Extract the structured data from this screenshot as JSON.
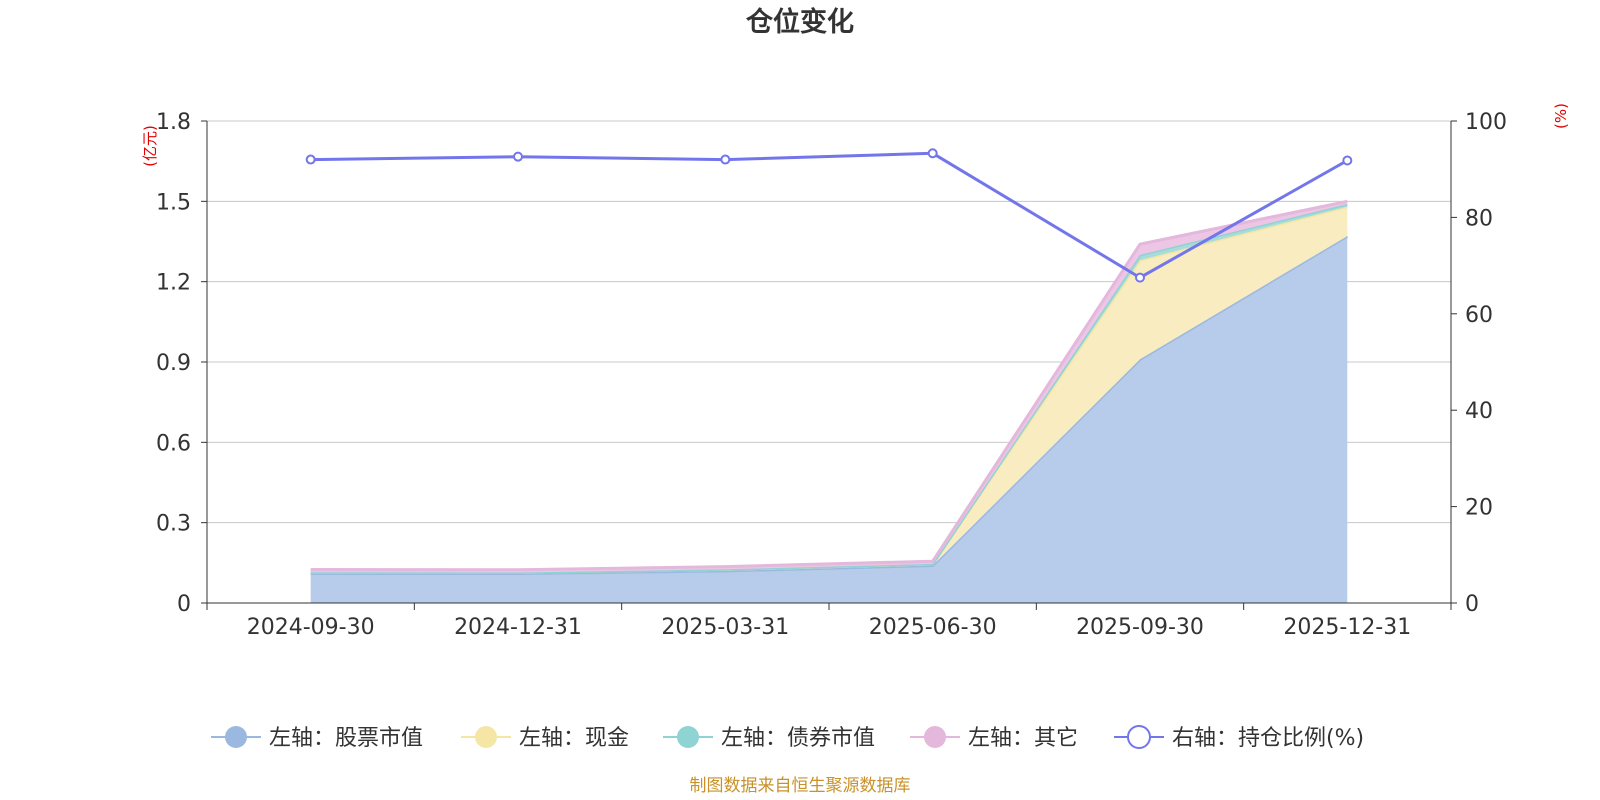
{
  "chart_data": {
    "type": "area",
    "title": "仓位变化",
    "x": [
      "2024-09-30",
      "2024-12-31",
      "2025-03-31",
      "2025-06-30",
      "2025-09-30",
      "2025-12-31"
    ],
    "left_axis": {
      "unit": "(亿元)",
      "range": [
        0,
        1.8
      ],
      "ticks": [
        "0",
        "0.3",
        "0.6",
        "0.9",
        "1.2",
        "1.5",
        "1.8"
      ]
    },
    "right_axis": {
      "unit": "(%)",
      "range": [
        0,
        100
      ],
      "ticks": [
        "0",
        "20",
        "40",
        "60",
        "80",
        "100"
      ]
    },
    "series": [
      {
        "name": "左轴：股票市值",
        "axis": "left",
        "stacked": true,
        "color": "#9bb8e0",
        "fill": "#b7cbea",
        "values": [
          0.11,
          0.11,
          0.12,
          0.14,
          0.91,
          1.37
        ]
      },
      {
        "name": "左轴：现金",
        "axis": "left",
        "stacked": true,
        "color": "#f5e6a6",
        "fill": "#f8ecc0",
        "values": [
          0.005,
          0.004,
          0.006,
          0.006,
          0.37,
          0.11
        ]
      },
      {
        "name": "左轴：债券市值",
        "axis": "left",
        "stacked": true,
        "color": "#8fd3d3",
        "fill": "#a8dcd8",
        "values": [
          0.0,
          0.0,
          0.0,
          0.0,
          0.02,
          0.01
        ]
      },
      {
        "name": "左轴：其它",
        "axis": "left",
        "stacked": true,
        "color": "#e4b7dc",
        "fill": "#ecc6e4",
        "values": [
          0.01,
          0.01,
          0.01,
          0.01,
          0.04,
          0.01
        ]
      },
      {
        "name": "右轴：持仓比例(%)",
        "axis": "right",
        "type": "line",
        "color": "#7276ea",
        "values": [
          92.0,
          92.6,
          92.0,
          93.3,
          67.5,
          91.8
        ]
      }
    ],
    "grid": true,
    "legend_position": "bottom"
  },
  "source_note": "制图数据来自恒生聚源数据库"
}
